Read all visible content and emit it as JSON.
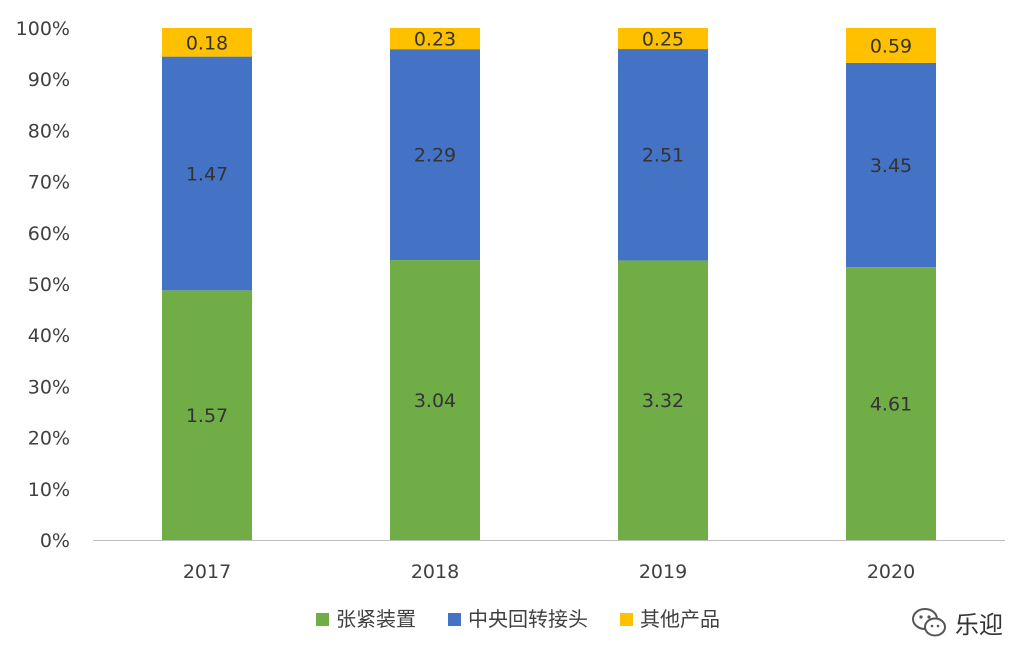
{
  "chart_data": {
    "type": "bar",
    "stacked": "percent",
    "categories": [
      "2017",
      "2018",
      "2019",
      "2020"
    ],
    "series": [
      {
        "name": "张紧装置",
        "values": [
          1.57,
          3.04,
          3.32,
          4.61
        ],
        "labels": [
          "1.57",
          "3.04",
          "3.32",
          "4.61"
        ],
        "color": "#70AD47"
      },
      {
        "name": "中央回转接头",
        "values": [
          1.47,
          2.29,
          2.51,
          3.45
        ],
        "labels": [
          "1.47",
          "2.29",
          "2.51",
          "3.45"
        ],
        "color": "#4472C4"
      },
      {
        "name": "其他产品",
        "values": [
          0.18,
          0.23,
          0.25,
          0.59
        ],
        "labels": [
          "0.18",
          "0.23",
          "0.25",
          "0.59"
        ],
        "color": "#FFC000"
      }
    ],
    "y_ticks": [
      "0%",
      "10%",
      "20%",
      "30%",
      "40%",
      "50%",
      "60%",
      "70%",
      "80%",
      "90%",
      "100%"
    ],
    "ylim": [
      0,
      100
    ],
    "grid": false,
    "legend_position": "bottom",
    "title": "",
    "xlabel": "",
    "ylabel": ""
  },
  "watermark": {
    "text": "乐迎",
    "icon": "wechat-icon"
  }
}
